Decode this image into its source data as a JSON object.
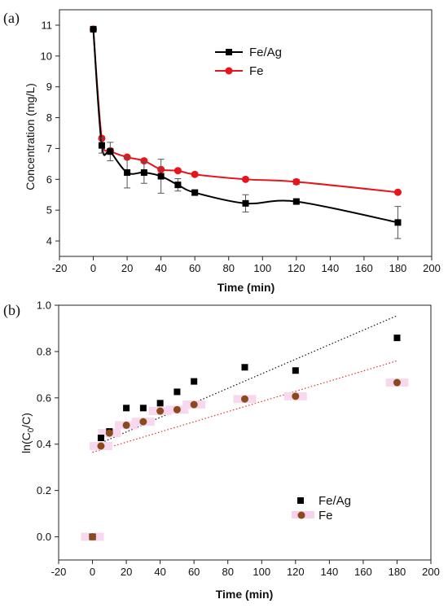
{
  "chart_data": [
    {
      "panel_label": "(a)",
      "type": "line",
      "xlabel": "Time (min)",
      "ylabel": "Concentration (mg/L)",
      "xlim": [
        -20,
        200
      ],
      "ylim": [
        3.5,
        11.5
      ],
      "xticks": [
        "-20",
        "0",
        "20",
        "40",
        "60",
        "80",
        "100",
        "120",
        "140",
        "160",
        "180",
        "200"
      ],
      "yticks": [
        "4",
        "5",
        "6",
        "7",
        "8",
        "9",
        "10",
        "11"
      ],
      "legend_position": "top-right",
      "series": [
        {
          "name": "Fe/Ag",
          "color": "#000000",
          "marker": "square",
          "x": [
            0,
            5,
            10,
            20,
            30,
            40,
            50,
            60,
            90,
            120,
            180
          ],
          "y": [
            10.87,
            7.1,
            6.9,
            6.22,
            6.22,
            6.1,
            5.82,
            5.57,
            5.22,
            5.28,
            4.6
          ],
          "err": [
            0,
            0.25,
            0.3,
            0.5,
            0.35,
            0.55,
            0.2,
            0.08,
            0.28,
            0.08,
            0.52
          ]
        },
        {
          "name": "Fe",
          "color": "#e8141c",
          "marker": "circle",
          "x": [
            0,
            5,
            10,
            20,
            30,
            40,
            50,
            60,
            90,
            120,
            180
          ],
          "y": [
            10.87,
            7.33,
            6.93,
            6.72,
            6.6,
            6.32,
            6.28,
            6.16,
            6.0,
            5.92,
            5.58
          ],
          "err": [
            0,
            0.05,
            0.05,
            0.05,
            0.05,
            0.05,
            0.05,
            0.05,
            0.05,
            0.08,
            0.05
          ]
        }
      ]
    },
    {
      "panel_label": "(b)",
      "type": "scatter",
      "xlabel": "Time (min)",
      "ylabel_prefix": "ln(C",
      "ylabel_sub": "0",
      "ylabel_suffix": "/C)",
      "xlim": [
        -20,
        200
      ],
      "ylim": [
        -0.1,
        1.0
      ],
      "xticks": [
        "-20",
        "0",
        "20",
        "40",
        "60",
        "80",
        "100",
        "120",
        "140",
        "160",
        "180",
        "200"
      ],
      "yticks": [
        "0.0",
        "0.2",
        "0.4",
        "0.6",
        "0.8",
        "1.0"
      ],
      "legend_position": "bottom-right",
      "series": [
        {
          "name": "Fe/Ag",
          "color": "#000000",
          "marker": "square",
          "x": [
            0,
            5,
            10,
            20,
            30,
            40,
            50,
            60,
            90,
            120,
            180
          ],
          "y": [
            0.0,
            0.427,
            0.455,
            0.556,
            0.556,
            0.577,
            0.626,
            0.671,
            0.732,
            0.718,
            0.859
          ],
          "fit": {
            "x": [
              0,
              180
            ],
            "y": [
              0.39,
              0.955
            ],
            "color": "#111111"
          }
        },
        {
          "name": "Fe",
          "color": "#8b4a1c",
          "marker": "circle",
          "x": [
            0,
            5,
            10,
            20,
            30,
            40,
            50,
            60,
            90,
            120,
            180
          ],
          "y": [
            0.0,
            0.392,
            0.448,
            0.482,
            0.497,
            0.543,
            0.549,
            0.571,
            0.595,
            0.607,
            0.666
          ],
          "fit": {
            "x": [
              0,
              180
            ],
            "y": [
              0.365,
              0.76
            ],
            "color": "#e0302a"
          }
        }
      ]
    }
  ]
}
